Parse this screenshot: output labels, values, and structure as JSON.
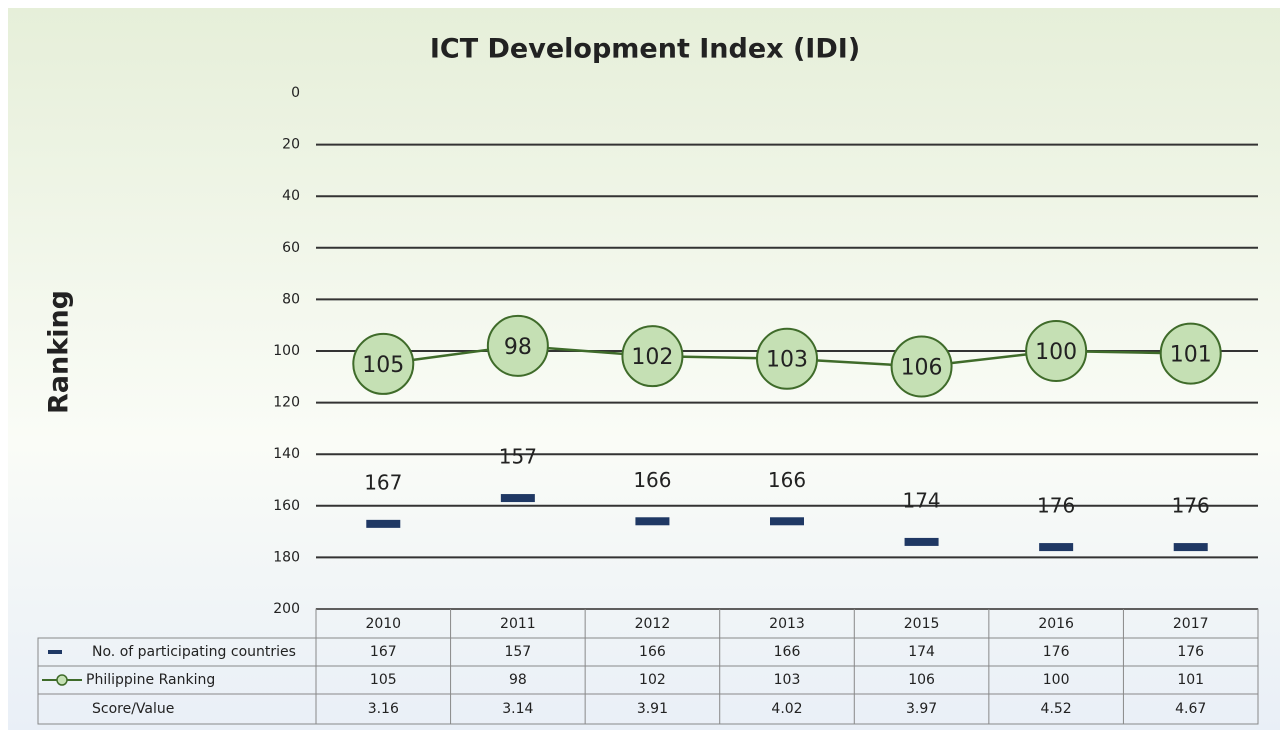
{
  "chart_data": {
    "type": "line",
    "title": "ICT Development Index (IDI)",
    "y_label": "Ranking",
    "categories": [
      "2010",
      "2011",
      "2012",
      "2013",
      "2015",
      "2016",
      "2017"
    ],
    "series": [
      {
        "name": "No. of participating countries",
        "color": "#1f3864",
        "marker": "dash",
        "values": [
          167,
          157,
          166,
          166,
          174,
          176,
          176
        ]
      },
      {
        "name": "Philippine Ranking",
        "color": "#3f6b2a",
        "marker": "circle",
        "values": [
          105,
          98,
          102,
          103,
          106,
          100,
          101
        ]
      }
    ],
    "score": {
      "name": "Score/Value",
      "values": [
        3.16,
        3.14,
        3.91,
        4.02,
        3.97,
        4.52,
        4.67
      ]
    },
    "ylim": [
      0,
      200
    ],
    "yticks": [
      0,
      20,
      40,
      60,
      80,
      100,
      120,
      140,
      160,
      180,
      200
    ],
    "y_inverted": true,
    "grid": true
  }
}
